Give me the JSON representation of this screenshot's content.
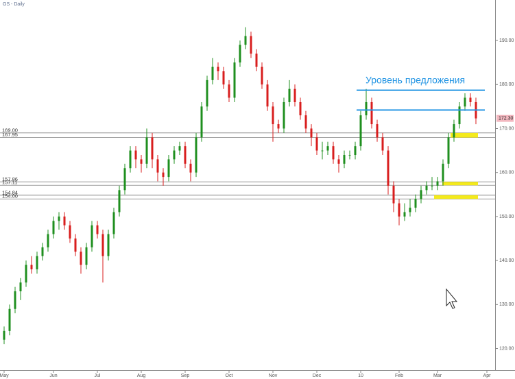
{
  "chart_data": {
    "type": "candlestick",
    "title": "GS - Daily",
    "categories": [
      "May",
      null,
      null,
      null,
      null,
      null,
      null,
      null,
      null,
      "Jun",
      null,
      null,
      null,
      null,
      null,
      null,
      null,
      "Jul",
      null,
      null,
      null,
      null,
      null,
      null,
      null,
      "Aug",
      null,
      null,
      null,
      null,
      null,
      null,
      null,
      "Sep",
      null,
      null,
      null,
      null,
      null,
      null,
      null,
      "Oct",
      null,
      null,
      null,
      null,
      null,
      null,
      null,
      "Nov",
      null,
      null,
      null,
      null,
      null,
      null,
      null,
      "Dec",
      null,
      null,
      null,
      null,
      null,
      null,
      null,
      "10",
      null,
      null,
      null,
      null,
      null,
      null,
      "Feb",
      null,
      null,
      null,
      null,
      null,
      null,
      "Mar",
      null,
      null,
      null,
      null,
      null,
      null,
      null,
      null,
      "Apr"
    ],
    "open": [
      122,
      124,
      129,
      133,
      135,
      139,
      138,
      141,
      143,
      146,
      149,
      150,
      148,
      145,
      142,
      139,
      143,
      148,
      146,
      141,
      146,
      151,
      156,
      161,
      165,
      163,
      162,
      168,
      163,
      160,
      159,
      163,
      165,
      166,
      162,
      160,
      168,
      175,
      181,
      184,
      183,
      180,
      177,
      185,
      189,
      191,
      187,
      184,
      180,
      175,
      171,
      170,
      176,
      179,
      176,
      173,
      170,
      168,
      165,
      165,
      166,
      163,
      162,
      164,
      164,
      166,
      173,
      176,
      171,
      168,
      165,
      157,
      153,
      150,
      151,
      152,
      154,
      156,
      157,
      157,
      158,
      162,
      168,
      171,
      175,
      177,
      176,
      null,
      null
    ],
    "high": [
      125,
      130,
      134,
      136,
      140,
      141,
      142,
      144,
      147,
      150,
      151,
      151,
      149,
      146,
      143,
      144,
      149,
      149,
      147,
      147,
      152,
      157,
      162,
      166,
      166,
      164,
      170,
      169,
      164,
      161,
      164,
      166,
      167,
      167,
      163,
      169,
      176,
      182,
      186,
      185,
      184,
      181,
      186,
      190,
      193,
      192,
      188,
      185,
      181,
      176,
      172,
      177,
      181,
      180,
      177,
      174,
      171,
      169,
      167,
      167,
      167,
      164,
      165,
      165,
      167,
      174,
      179,
      177,
      172,
      169,
      166,
      158,
      154,
      153,
      154,
      155,
      157,
      158,
      159,
      159,
      163,
      169,
      172,
      176,
      178,
      178,
      177,
      null,
      null
    ],
    "low": [
      121,
      123,
      128,
      131,
      134,
      137,
      137,
      140,
      142,
      145,
      147,
      147,
      144,
      141,
      137,
      138,
      142,
      145,
      135,
      140,
      145,
      150,
      155,
      160,
      161,
      160,
      161,
      161,
      158,
      157,
      158,
      162,
      164,
      161,
      158,
      159,
      167,
      174,
      180,
      181,
      179,
      176,
      176,
      184,
      188,
      186,
      183,
      179,
      174,
      167,
      169,
      169,
      175,
      175,
      172,
      169,
      166,
      164,
      163,
      164,
      162,
      160,
      161,
      163,
      163,
      165,
      172,
      170,
      167,
      164,
      155,
      151,
      148,
      149,
      150,
      151,
      153,
      155,
      156,
      156,
      157,
      161,
      167,
      170,
      174,
      175,
      171,
      null,
      null
    ],
    "close": [
      124,
      129,
      133,
      135,
      139,
      138,
      141,
      143,
      146,
      149,
      150,
      148,
      145,
      142,
      139,
      143,
      148,
      146,
      141,
      146,
      151,
      156,
      161,
      165,
      163,
      162,
      168,
      163,
      160,
      159,
      163,
      165,
      166,
      162,
      160,
      168,
      175,
      181,
      184,
      183,
      180,
      177,
      185,
      189,
      191,
      187,
      184,
      180,
      175,
      171,
      170,
      176,
      179,
      176,
      173,
      170,
      168,
      165,
      165,
      166,
      163,
      162,
      164,
      164,
      166,
      173,
      176,
      171,
      168,
      165,
      157,
      153,
      150,
      151,
      152,
      154,
      156,
      157,
      157,
      158,
      162,
      168,
      171,
      175,
      177,
      176,
      172.3,
      null,
      null
    ],
    "up_color": "#1f8f1f",
    "down_color": "#d81e1e",
    "last_label": "172.30",
    "ylim": [
      115.1,
      199.2
    ],
    "yticks": [
      {
        "value": 120,
        "label": "120.00"
      },
      {
        "value": 130,
        "label": "130.00"
      },
      {
        "value": 140,
        "label": "140.00"
      },
      {
        "value": 150,
        "label": "150.00"
      },
      {
        "value": 160,
        "label": "160.00"
      },
      {
        "value": 170,
        "label": "170.00"
      },
      {
        "value": 180,
        "label": "180.00"
      },
      {
        "value": 190,
        "label": "190.00"
      }
    ],
    "levels": [
      {
        "value": 169,
        "label": "169.00"
      },
      {
        "value": 167.95,
        "label": "167.95"
      },
      {
        "value": 157.86,
        "label": "157.86"
      },
      {
        "value": 157.11,
        "label": "157.11"
      },
      {
        "value": 154.84,
        "label": "154.84"
      },
      {
        "value": 154,
        "label": "154.00"
      }
    ],
    "zone_color": "#f4ea1c",
    "resistance": {
      "label": "Уровень предложения",
      "values": [
        178.7,
        174.2
      ],
      "color": "#2596e4"
    }
  }
}
